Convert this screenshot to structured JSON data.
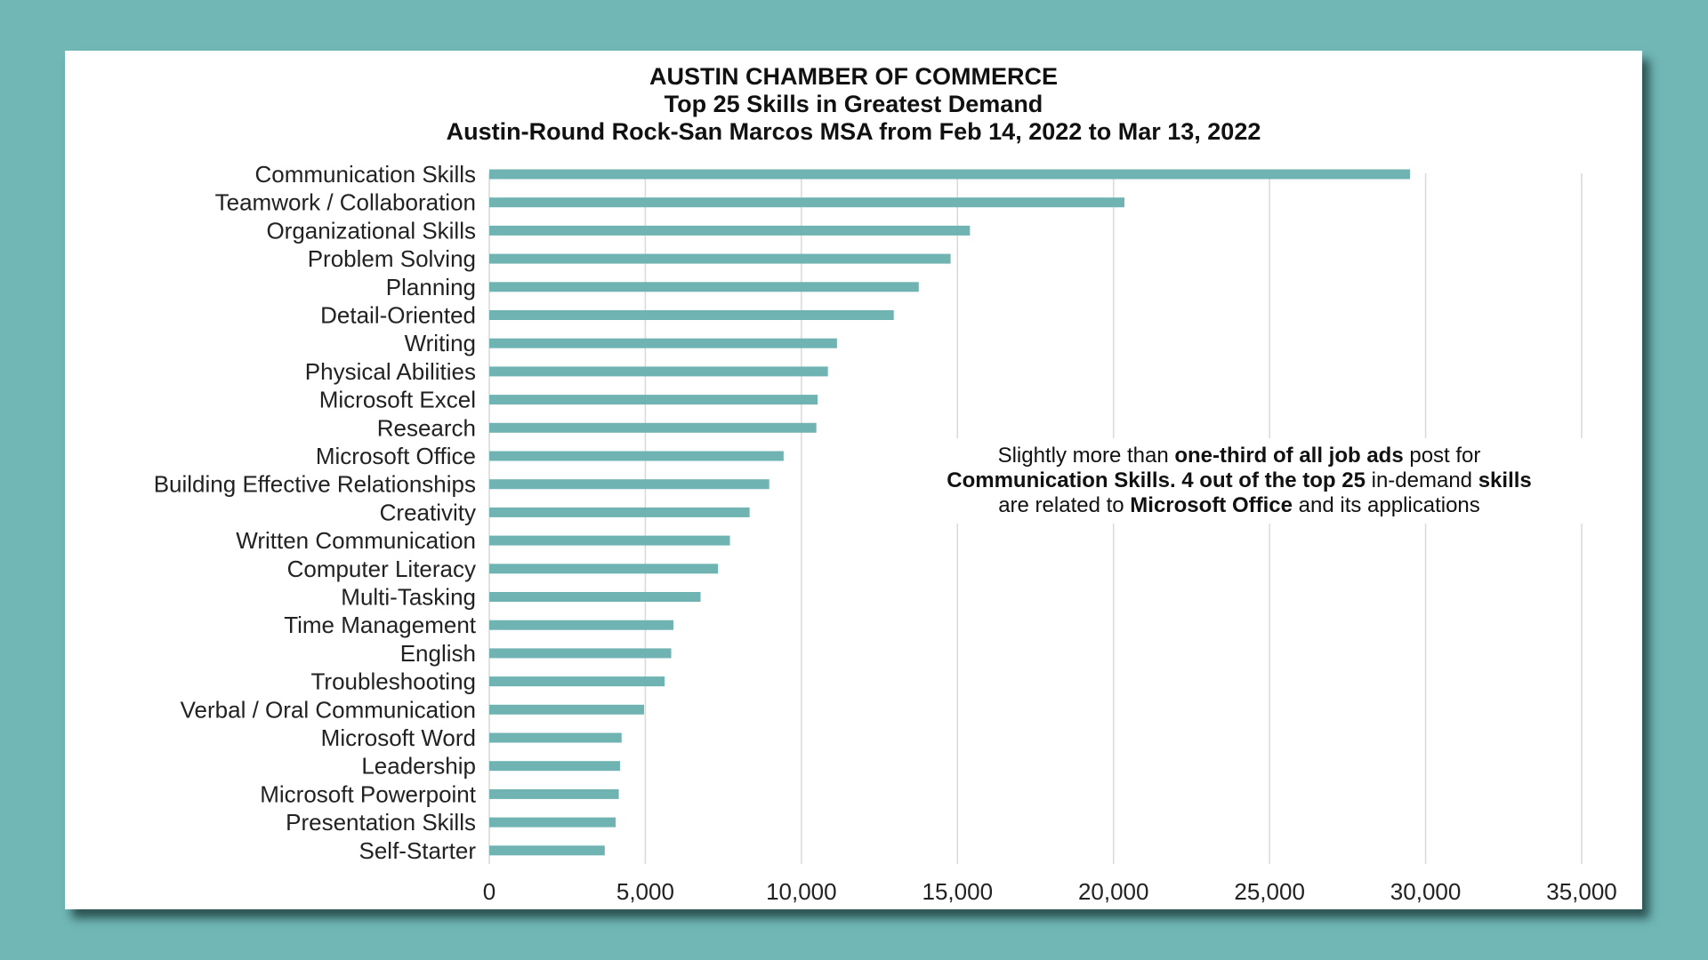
{
  "colors": {
    "background": "#70b7b6",
    "bar": "#6fb4b3",
    "grid": "#d9d9d9",
    "card": "#ffffff"
  },
  "chart_data": {
    "type": "bar",
    "orientation": "horizontal",
    "title": "AUSTIN CHAMBER OF COMMERCE",
    "subtitle": "Top 25 Skills in Greatest Demand",
    "subtitle2": "Austin-Round Rock-San Marcos MSA from Feb 14, 2022 to Mar 13, 2022",
    "xlabel": "",
    "ylabel": "",
    "xlim": [
      0,
      35000
    ],
    "xticks": [
      0,
      5000,
      10000,
      15000,
      20000,
      25000,
      30000,
      35000
    ],
    "xtick_labels": [
      "0",
      "5,000",
      "10,000",
      "15,000",
      "20,000",
      "25,000",
      "30,000",
      "35,000"
    ],
    "grid": true,
    "legend": "none",
    "categories": [
      "Communication Skills",
      "Teamwork / Collaboration",
      "Organizational Skills",
      "Problem Solving",
      "Planning",
      "Detail-Oriented",
      "Writing",
      "Physical Abilities",
      "Microsoft Excel",
      "Research",
      "Microsoft Office",
      "Building Effective Relationships",
      "Creativity",
      "Written Communication",
      "Computer Literacy",
      "Multi-Tasking",
      "Time Management",
      "English",
      "Troubleshooting",
      "Verbal / Oral Communication",
      "Microsoft Word",
      "Leadership",
      "Microsoft Powerpoint",
      "Presentation Skills",
      "Self-Starter"
    ],
    "values": [
      29500,
      20350,
      15400,
      14780,
      13760,
      12960,
      11140,
      10850,
      10520,
      10480,
      9430,
      8970,
      8340,
      7710,
      7330,
      6770,
      5900,
      5830,
      5620,
      4960,
      4240,
      4190,
      4150,
      4050,
      3700
    ],
    "annotation": {
      "segments": [
        {
          "text": "Slightly more than ",
          "bold": false
        },
        {
          "text": "one-third of all job ads",
          "bold": true
        },
        {
          "text": " post for",
          "bold": false
        },
        {
          "text": "\n",
          "bold": false
        },
        {
          "text": "Communication  Skills. 4 out of the top 25",
          "bold": true
        },
        {
          "text": " in-demand ",
          "bold": false
        },
        {
          "text": "skills",
          "bold": true
        },
        {
          "text": "\n",
          "bold": false
        },
        {
          "text": "are related to ",
          "bold": false
        },
        {
          "text": "Microsoft Office",
          "bold": true
        },
        {
          "text": " and its applications",
          "bold": false
        }
      ]
    }
  }
}
